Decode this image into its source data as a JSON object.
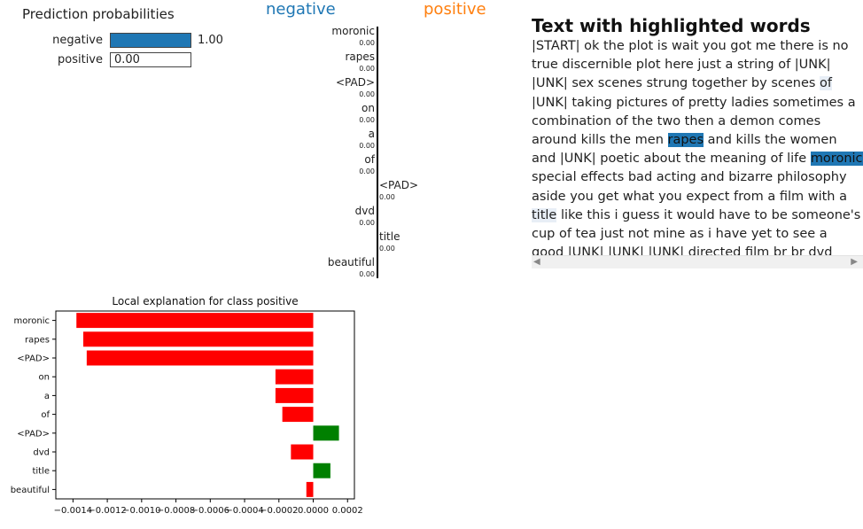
{
  "prediction": {
    "title": "Prediction probabilities",
    "rows": [
      {
        "label": "negative",
        "value": 1.0,
        "value_text": "1.00",
        "color": "#1f77b4"
      },
      {
        "label": "positive",
        "value": 0.0,
        "value_text": "0.00",
        "color": "#ff7f0e"
      }
    ]
  },
  "classes": {
    "negative": "negative",
    "positive": "positive"
  },
  "mini_bars": [
    {
      "word": "moronic",
      "value_text": "0.00",
      "side": "negative"
    },
    {
      "word": "rapes",
      "value_text": "0.00",
      "side": "negative"
    },
    {
      "word": "<PAD>",
      "value_text": "0.00",
      "side": "negative"
    },
    {
      "word": "on",
      "value_text": "0.00",
      "side": "negative"
    },
    {
      "word": "a",
      "value_text": "0.00",
      "side": "negative"
    },
    {
      "word": "of",
      "value_text": "0.00",
      "side": "negative"
    },
    {
      "word": "<PAD>",
      "value_text": "0.00",
      "side": "positive"
    },
    {
      "word": "dvd",
      "value_text": "0.00",
      "side": "negative"
    },
    {
      "word": "title",
      "value_text": "0.00",
      "side": "positive"
    },
    {
      "word": "beautiful",
      "value_text": "0.00",
      "side": "negative"
    }
  ],
  "text_panel": {
    "title": "Text with highlighted words",
    "segments": [
      {
        "t": "|START| ok the plot is wait you got me there is no true discernible plot here just a string of |UNK| |UNK| sex scenes strung together by scenes "
      },
      {
        "t": "of",
        "hl": "faint"
      },
      {
        "t": " |UNK| taking pictures of pretty ladies sometimes a combination of the two then a demon comes around kills the men "
      },
      {
        "t": "rapes",
        "hl": "strong"
      },
      {
        "t": " and kills the women and |UNK| poetic about the meaning of life "
      },
      {
        "t": "moronic",
        "hl": "strong"
      },
      {
        "t": " special effects bad acting and bizarre philosophy aside you get what you expect from a film with a "
      },
      {
        "t": "title",
        "hl": "faint"
      },
      {
        "t": " like this i guess it would have to be someone's cup of tea just not mine as i have yet to see a good |UNK| |UNK| |UNK| directed film br br dvd extras"
      }
    ],
    "scroll_left": "◀",
    "scroll_right": "▶"
  },
  "chart_data": {
    "type": "bar",
    "orientation": "horizontal",
    "title": "Local explanation for class positive",
    "categories": [
      "moronic",
      "rapes",
      "<PAD>",
      "on",
      "a",
      "of",
      "<PAD>",
      "dvd",
      "title",
      "beautiful"
    ],
    "values": [
      -0.00138,
      -0.00134,
      -0.00132,
      -0.00022,
      -0.00022,
      -0.00018,
      0.00015,
      -0.00013,
      0.0001,
      -4e-05
    ],
    "xlim": [
      -0.0015,
      0.00024
    ],
    "xticks": [
      -0.0014,
      -0.0012,
      -0.001,
      -0.0008,
      -0.0006,
      -0.0004,
      -0.0002,
      0,
      0.0002
    ],
    "xtick_labels": [
      "−0.0014",
      "−0.0012",
      "−0.0010",
      "−0.0008",
      "−0.0006",
      "−0.0004",
      "−0.0002",
      "0.0000",
      "0.0002"
    ],
    "colors": {
      "positive": "#008000",
      "negative": "#ff0000"
    },
    "grid": false
  }
}
